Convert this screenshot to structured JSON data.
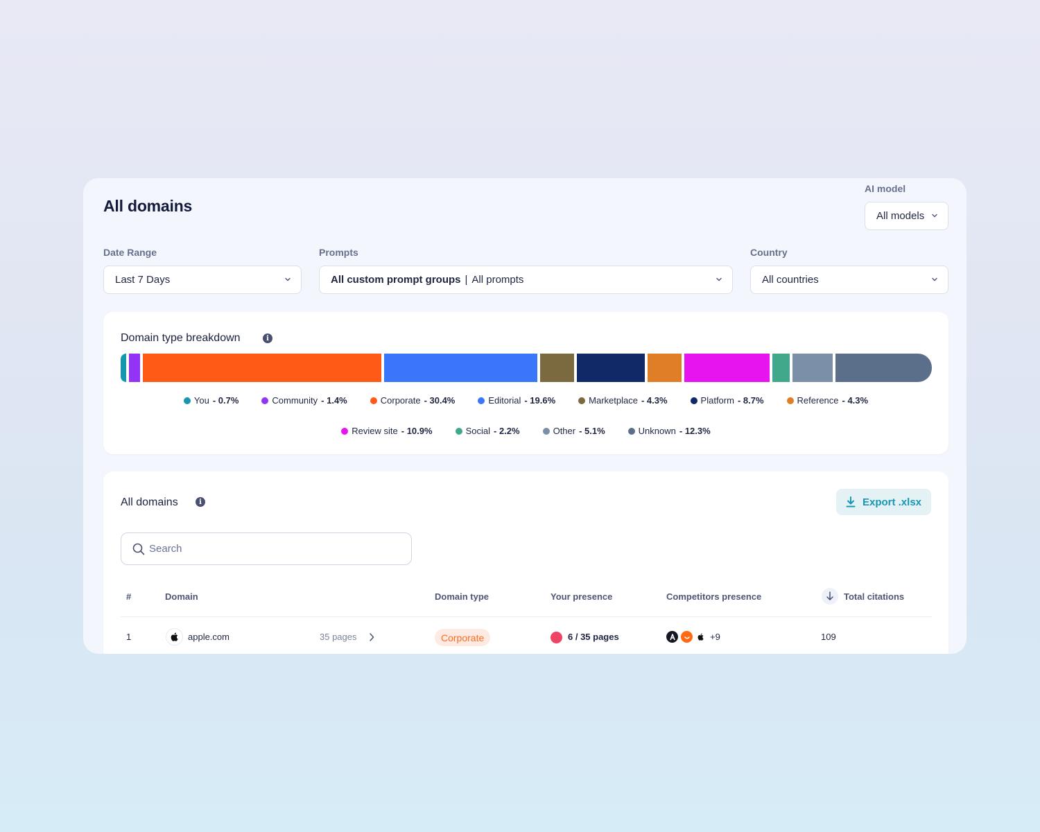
{
  "header": {
    "title": "All domains"
  },
  "filters": {
    "ai_model": {
      "label": "AI model",
      "value": "All models"
    },
    "date_range": {
      "label": "Date Range",
      "value": "Last 7 Days"
    },
    "prompts": {
      "label": "Prompts",
      "value_bold": "All custom prompt groups",
      "separator": "|",
      "value_rest": "All prompts"
    },
    "country": {
      "label": "Country",
      "value": "All countries"
    }
  },
  "breakdown": {
    "title": "Domain type breakdown",
    "info_icon": "info-icon",
    "segments": [
      {
        "name": "You",
        "pct_label": "- 0.7%",
        "value": 0.7,
        "color": "#1597b0"
      },
      {
        "name": "Community",
        "pct_label": "- 1.4%",
        "value": 1.4,
        "color": "#9333f5"
      },
      {
        "name": "Corporate",
        "pct_label": "- 30.4%",
        "value": 30.4,
        "color": "#ff5a16"
      },
      {
        "name": "Editorial",
        "pct_label": "- 19.6%",
        "value": 19.6,
        "color": "#3a76fa"
      },
      {
        "name": "Marketplace",
        "pct_label": "- 4.3%",
        "value": 4.3,
        "color": "#7b6a40"
      },
      {
        "name": "Platform",
        "pct_label": "- 8.7%",
        "value": 8.7,
        "color": "#112966"
      },
      {
        "name": "Reference",
        "pct_label": "- 4.3%",
        "value": 4.3,
        "color": "#df7e27"
      },
      {
        "name": "Review site",
        "pct_label": "- 10.9%",
        "value": 10.9,
        "color": "#e814ef"
      },
      {
        "name": "Social",
        "pct_label": "- 2.2%",
        "value": 2.2,
        "color": "#41a98b"
      },
      {
        "name": "Other",
        "pct_label": "- 5.1%",
        "value": 5.1,
        "color": "#7b90a8"
      },
      {
        "name": "Unknown",
        "pct_label": "- 12.3%",
        "value": 12.3,
        "color": "#5c6f8a"
      }
    ]
  },
  "domains": {
    "title": "All domains",
    "export_label": "Export .xlsx",
    "search_placeholder": "Search",
    "columns": {
      "index": "#",
      "domain": "Domain",
      "domain_type": "Domain type",
      "your_presence": "Your presence",
      "competitors_presence": "Competitors presence",
      "total_citations": "Total citations"
    },
    "rows": [
      {
        "index": "1",
        "domain": "apple.com",
        "pages": "35 pages",
        "domain_type": "Corporate",
        "presence": "6 / 35 pages",
        "presence_color": "#ef4466",
        "competitors_more": "+9",
        "total_citations": "109"
      }
    ]
  }
}
